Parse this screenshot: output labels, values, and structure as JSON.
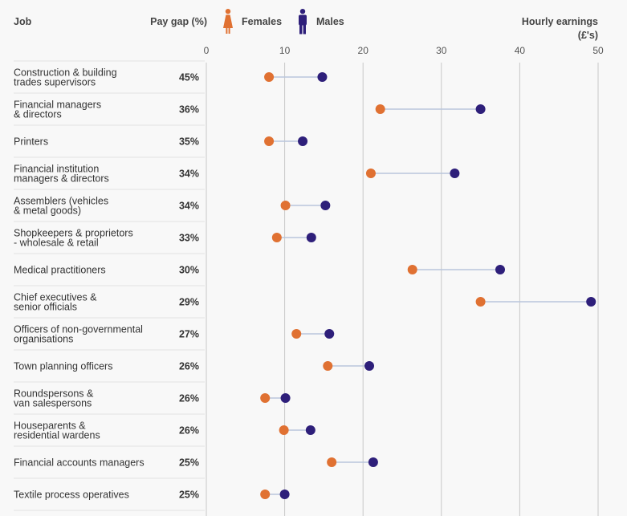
{
  "header": {
    "job": "Job",
    "pay_gap": "Pay gap (%)",
    "females": "Females",
    "males": "Males",
    "earnings_line1": "Hourly earnings",
    "earnings_line2": "(£'s)"
  },
  "colors": {
    "female": "#e07132",
    "male": "#2e1f7a",
    "connector": "#b9c6dc"
  },
  "chart_data": {
    "type": "scatter",
    "subtype": "dumbbell",
    "xlabel": "Hourly earnings (£'s)",
    "xlim": [
      0,
      50
    ],
    "xticks": [
      0,
      10,
      20,
      30,
      40,
      50
    ],
    "legend": {
      "placement": "top",
      "entries": [
        "Females",
        "Males"
      ]
    },
    "grid": true,
    "rows": [
      {
        "job": [
          "Construction & building",
          "trades supervisors"
        ],
        "gap": "45%",
        "female": 8.0,
        "male": 14.8
      },
      {
        "job": [
          "Financial managers",
          "& directors"
        ],
        "gap": "36%",
        "female": 22.2,
        "male": 35.0
      },
      {
        "job": [
          "Printers"
        ],
        "gap": "35%",
        "female": 8.0,
        "male": 12.3
      },
      {
        "job": [
          "Financial institution",
          "managers & directors"
        ],
        "gap": "34%",
        "female": 21.0,
        "male": 31.7
      },
      {
        "job": [
          "Assemblers (vehicles",
          "& metal goods)"
        ],
        "gap": "34%",
        "female": 10.1,
        "male": 15.2
      },
      {
        "job": [
          "Shopkeepers & proprietors",
          "- wholesale & retail"
        ],
        "gap": "33%",
        "female": 9.0,
        "male": 13.4
      },
      {
        "job": [
          "Medical practitioners"
        ],
        "gap": "30%",
        "female": 26.3,
        "male": 37.5
      },
      {
        "job": [
          "Chief executives &",
          "senior officials"
        ],
        "gap": "29%",
        "female": 35.0,
        "male": 49.1
      },
      {
        "job": [
          "Officers of non-governmental",
          "organisations"
        ],
        "gap": "27%",
        "female": 11.5,
        "male": 15.7
      },
      {
        "job": [
          "Town planning officers"
        ],
        "gap": "26%",
        "female": 15.5,
        "male": 20.8
      },
      {
        "job": [
          "Roundspersons &",
          "van salespersons"
        ],
        "gap": "26%",
        "female": 7.5,
        "male": 10.1
      },
      {
        "job": [
          "Houseparents &",
          "residential wardens"
        ],
        "gap": "26%",
        "female": 9.9,
        "male": 13.3
      },
      {
        "job": [
          "Financial accounts managers"
        ],
        "gap": "25%",
        "female": 16.0,
        "male": 21.3
      },
      {
        "job": [
          "Textile process operatives"
        ],
        "gap": "25%",
        "female": 7.5,
        "male": 10.0
      }
    ]
  }
}
